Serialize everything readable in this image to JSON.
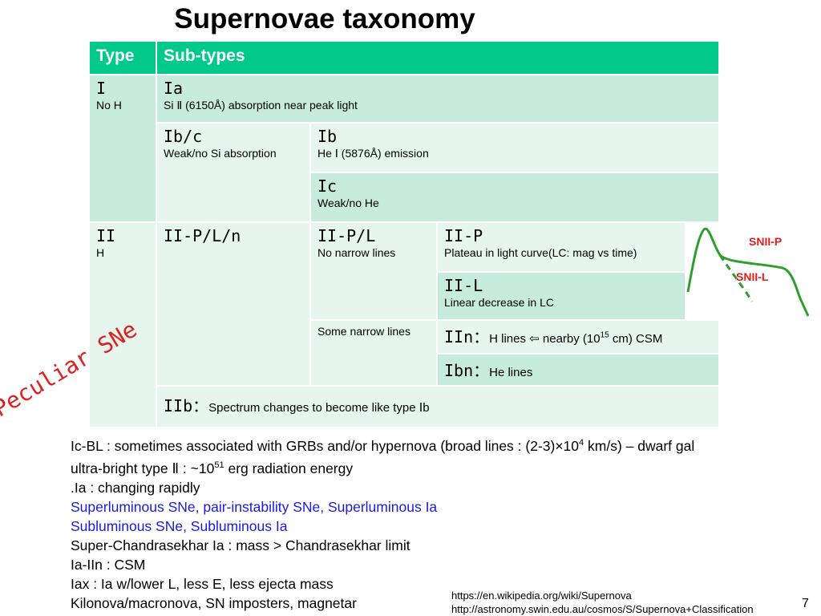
{
  "title": "Supernovae taxonomy",
  "table": {
    "header": {
      "type": "Type",
      "subtypes": "Sub-types"
    },
    "type_I": {
      "code": "I",
      "desc": "No H"
    },
    "Ia": {
      "code": "Ia",
      "desc": "Si Ⅱ (6150Å) absorption near peak light"
    },
    "Ibc": {
      "code": "Ib/c",
      "desc": "Weak/no Si absorption"
    },
    "Ib": {
      "code": "Ib",
      "desc": "He Ⅰ (5876Å) emission"
    },
    "Ic": {
      "code": "Ic",
      "desc": "Weak/no He"
    },
    "type_II": {
      "code": "II",
      "desc": "H"
    },
    "IIPLn": {
      "code": "II-P/L/n"
    },
    "IIPL": {
      "code": "II-P/L",
      "desc": "No narrow lines"
    },
    "IIP": {
      "code": "II-P",
      "desc": "Plateau in light curve(LC: mag vs time)"
    },
    "IIL": {
      "code": "II-L",
      "desc": "Linear decrease in LC"
    },
    "some_narrow": "Some narrow lines",
    "IIn": {
      "code": "IIn：",
      "desc_pre": "H lines ⇦ nearby (10",
      "desc_sup": "15",
      "desc_post": " cm) CSM"
    },
    "Ibn": {
      "code": "Ibn：",
      "desc": "He lines"
    },
    "IIb": {
      "code": "IIb：",
      "desc": "Spectrum changes to become like type Ⅰb"
    }
  },
  "figure": {
    "label_p": "SNII-P",
    "label_l": "SNII-L",
    "color_p": "#2e9e2e",
    "color_l": "#e02020"
  },
  "peculiar_label": "Peculiar SNe",
  "notes": {
    "l1_pre": "Ic-BL : sometimes associated with GRBs and/or hypernova (broad lines : (2-3)×10",
    "l1_sup": "4",
    "l1_post": " km/s) – dwarf gal",
    "l2_pre": "ultra-bright type Ⅱ : ~10",
    "l2_sup": "51",
    "l2_post": " erg radiation energy",
    "l3": ".Ia : changing rapidly",
    "l4": "Superluminous SNe, pair-instability SNe, Superluminous Ia",
    "l5": "Subluminous  SNe, Subluminous Ia",
    "l6": "Super-Chandrasekhar Ia : mass > Chandrasekhar limit",
    "l7": "Ia-IIn : CSM",
    "l8": "Iax : Ia w/lower L, less E, less ejecta mass",
    "l9": "Kilonova/macronova, SN imposters, magnetar"
  },
  "refs": {
    "r1": "https://en.wikipedia.org/wiki/Supernova",
    "r2": "http://astronomy.swin.edu.au/cosmos/S/Supernova+Classification"
  },
  "page_number": "7"
}
